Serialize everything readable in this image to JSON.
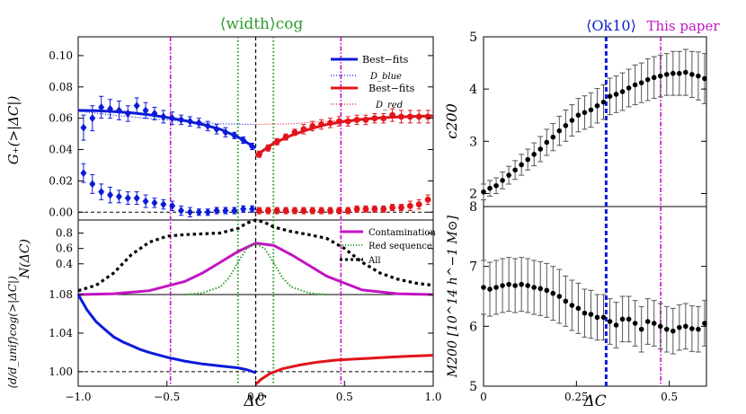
{
  "chart_data": [
    {
      "type": "scatter",
      "panel": "left-top",
      "xlabel": "ΔC",
      "ylabel": "G₊(>|ΔC|)",
      "xlim": [
        -1.0,
        1.0
      ],
      "ylim": [
        -0.005,
        0.112
      ],
      "yticks": [
        "0.00",
        "0.02",
        "0.04",
        "0.06",
        "0.08",
        "0.10"
      ],
      "legend": [
        "Best−fits",
        "D_blue",
        "Best−fits",
        "D_red"
      ],
      "top_label": "⟨width⟩cog",
      "series": [
        {
          "name": "blue best-fit",
          "x": [
            -1.0,
            -0.9,
            -0.8,
            -0.7,
            -0.6,
            -0.5,
            -0.4,
            -0.3,
            -0.2,
            -0.1,
            0.0
          ],
          "values": [
            0.065,
            0.0648,
            0.0643,
            0.0635,
            0.0622,
            0.0605,
            0.0585,
            0.056,
            0.053,
            0.048,
            0.041
          ]
        },
        {
          "name": "D_blue",
          "x": [
            -1.0,
            -0.8,
            -0.6,
            -0.4,
            -0.2,
            0.0
          ],
          "values": [
            0.0645,
            0.062,
            0.0598,
            0.058,
            0.0565,
            0.056
          ]
        },
        {
          "name": "red best-fit",
          "x": [
            0.0,
            0.05,
            0.1,
            0.2,
            0.3,
            0.4,
            0.5,
            0.6,
            0.7,
            0.8,
            0.9,
            1.0
          ],
          "values": [
            0.036,
            0.04,
            0.044,
            0.049,
            0.053,
            0.056,
            0.058,
            0.0593,
            0.0602,
            0.0608,
            0.0612,
            0.0615
          ]
        },
        {
          "name": "D_red",
          "x": [
            0.0,
            0.2,
            0.4,
            0.6,
            0.8,
            1.0
          ],
          "values": [
            0.056,
            0.0565,
            0.058,
            0.0595,
            0.061,
            0.0622
          ]
        },
        {
          "name": "blue points upper",
          "x": [
            -0.97,
            -0.92,
            -0.87,
            -0.82,
            -0.77,
            -0.72,
            -0.67,
            -0.62,
            -0.57,
            -0.52,
            -0.47,
            -0.42,
            -0.37,
            -0.32,
            -0.27,
            -0.22,
            -0.17,
            -0.12,
            -0.07,
            -0.02
          ],
          "values": [
            0.054,
            0.06,
            0.067,
            0.066,
            0.065,
            0.063,
            0.068,
            0.065,
            0.063,
            0.061,
            0.06,
            0.059,
            0.058,
            0.057,
            0.055,
            0.053,
            0.051,
            0.049,
            0.046,
            0.042
          ],
          "err": [
            0.008,
            0.008,
            0.007,
            0.006,
            0.006,
            0.005,
            0.005,
            0.005,
            0.004,
            0.004,
            0.004,
            0.003,
            0.003,
            0.003,
            0.003,
            0.003,
            0.003,
            0.002,
            0.002,
            0.002
          ]
        },
        {
          "name": "blue points lower",
          "x": [
            -0.97,
            -0.92,
            -0.87,
            -0.82,
            -0.77,
            -0.72,
            -0.67,
            -0.62,
            -0.57,
            -0.52,
            -0.47,
            -0.42,
            -0.37,
            -0.32,
            -0.27,
            -0.22,
            -0.17,
            -0.12,
            -0.07,
            -0.02
          ],
          "values": [
            0.025,
            0.018,
            0.013,
            0.011,
            0.01,
            0.009,
            0.009,
            0.007,
            0.006,
            0.005,
            0.004,
            0.001,
            0.0,
            0.0,
            0.0,
            0.001,
            0.001,
            0.001,
            0.002,
            0.002
          ],
          "err": [
            0.006,
            0.006,
            0.005,
            0.005,
            0.004,
            0.004,
            0.004,
            0.004,
            0.003,
            0.003,
            0.003,
            0.003,
            0.003,
            0.002,
            0.002,
            0.002,
            0.002,
            0.002,
            0.002,
            0.002
          ]
        },
        {
          "name": "red points upper",
          "x": [
            0.02,
            0.07,
            0.12,
            0.17,
            0.22,
            0.27,
            0.32,
            0.37,
            0.42,
            0.47,
            0.52,
            0.57,
            0.62,
            0.67,
            0.72,
            0.77,
            0.82,
            0.87,
            0.92,
            0.97
          ],
          "values": [
            0.037,
            0.041,
            0.045,
            0.048,
            0.051,
            0.053,
            0.055,
            0.056,
            0.057,
            0.058,
            0.058,
            0.059,
            0.059,
            0.06,
            0.06,
            0.062,
            0.061,
            0.061,
            0.061,
            0.061
          ],
          "err": [
            0.002,
            0.002,
            0.002,
            0.002,
            0.002,
            0.003,
            0.003,
            0.003,
            0.003,
            0.003,
            0.003,
            0.003,
            0.003,
            0.003,
            0.003,
            0.004,
            0.004,
            0.004,
            0.004,
            0.004
          ]
        },
        {
          "name": "red points lower",
          "x": [
            0.02,
            0.07,
            0.12,
            0.17,
            0.22,
            0.27,
            0.32,
            0.37,
            0.42,
            0.47,
            0.52,
            0.57,
            0.62,
            0.67,
            0.72,
            0.77,
            0.82,
            0.87,
            0.92,
            0.97
          ],
          "values": [
            0.001,
            0.001,
            0.001,
            0.001,
            0.001,
            0.001,
            0.001,
            0.001,
            0.001,
            0.001,
            0.001,
            0.002,
            0.002,
            0.002,
            0.002,
            0.003,
            0.003,
            0.004,
            0.005,
            0.008
          ],
          "err": [
            0.002,
            0.002,
            0.002,
            0.002,
            0.002,
            0.002,
            0.002,
            0.002,
            0.002,
            0.002,
            0.002,
            0.002,
            0.002,
            0.002,
            0.002,
            0.002,
            0.002,
            0.003,
            0.003,
            0.003
          ]
        }
      ],
      "vlines": [
        {
          "x": -0.1,
          "style": "green-dotted"
        },
        {
          "x": 0.1,
          "style": "green-dotted"
        },
        {
          "x": 0.0,
          "style": "black-dashed"
        },
        {
          "x": -0.48,
          "style": "magenta-dashdot"
        },
        {
          "x": 0.48,
          "style": "magenta-dashdot"
        }
      ],
      "hline": 0.0
    },
    {
      "type": "line",
      "panel": "left-middle",
      "ylabel": "N(ΔC)",
      "xlim": [
        -1.0,
        1.0
      ],
      "ylim": [
        0.0,
        0.97
      ],
      "yticks": [
        "0.4",
        "0.6",
        "0.8"
      ],
      "legend": [
        "Contamination",
        "Red sequence",
        "All"
      ],
      "series": [
        {
          "name": "Contamination",
          "x": [
            -1.0,
            -0.8,
            -0.6,
            -0.4,
            -0.3,
            -0.2,
            -0.1,
            0.0,
            0.1,
            0.2,
            0.3,
            0.4,
            0.6,
            0.8,
            1.0
          ],
          "values": [
            0.0,
            0.01,
            0.05,
            0.17,
            0.28,
            0.42,
            0.56,
            0.67,
            0.64,
            0.52,
            0.38,
            0.24,
            0.06,
            0.01,
            0.0
          ]
        },
        {
          "name": "Red sequence",
          "x": [
            -0.4,
            -0.3,
            -0.2,
            -0.15,
            -0.1,
            -0.05,
            0.0,
            0.05,
            0.1,
            0.15,
            0.2,
            0.3,
            0.4
          ],
          "values": [
            0.0,
            0.02,
            0.1,
            0.22,
            0.42,
            0.6,
            0.66,
            0.6,
            0.42,
            0.22,
            0.1,
            0.02,
            0.0
          ]
        },
        {
          "name": "All",
          "x": [
            -1.0,
            -0.9,
            -0.8,
            -0.7,
            -0.6,
            -0.5,
            -0.4,
            -0.3,
            -0.2,
            -0.1,
            -0.05,
            0.0,
            0.05,
            0.1,
            0.2,
            0.3,
            0.4,
            0.5,
            0.6,
            0.7,
            0.8,
            0.9,
            1.0
          ],
          "values": [
            0.05,
            0.12,
            0.28,
            0.52,
            0.68,
            0.76,
            0.78,
            0.79,
            0.8,
            0.86,
            0.93,
            0.97,
            0.94,
            0.88,
            0.82,
            0.78,
            0.73,
            0.6,
            0.42,
            0.28,
            0.2,
            0.15,
            0.12
          ]
        }
      ]
    },
    {
      "type": "line",
      "panel": "left-bottom",
      "xlabel": "ΔC",
      "ylabel": "⟨d/d_unif⟩cog(>|ΔC|)",
      "xlim": [
        -1.0,
        1.0
      ],
      "ylim": [
        0.985,
        1.08
      ],
      "yticks": [
        "1.00",
        "1.04",
        "1.08"
      ],
      "xticks": [
        "−1.0",
        "−0.5",
        "0.0",
        "0.5",
        "1.0"
      ],
      "series": [
        {
          "name": "blue",
          "x": [
            -1.0,
            -0.95,
            -0.9,
            -0.85,
            -0.8,
            -0.75,
            -0.7,
            -0.65,
            -0.6,
            -0.5,
            -0.4,
            -0.3,
            -0.2,
            -0.1,
            -0.05,
            0.0
          ],
          "values": [
            1.08,
            1.064,
            1.052,
            1.044,
            1.036,
            1.031,
            1.027,
            1.023,
            1.02,
            1.015,
            1.011,
            1.008,
            1.006,
            1.004,
            1.002,
            0.999
          ]
        },
        {
          "name": "red",
          "x": [
            0.0,
            0.03,
            0.08,
            0.15,
            0.25,
            0.35,
            0.45,
            0.55,
            0.65,
            0.75,
            0.85,
            1.0
          ],
          "values": [
            0.987,
            0.992,
            0.998,
            1.003,
            1.007,
            1.01,
            1.012,
            1.013,
            1.014,
            1.015,
            1.016,
            1.017
          ]
        }
      ],
      "hline": 1.0
    },
    {
      "type": "scatter",
      "panel": "right-top",
      "ylabel": "c200",
      "xlim": [
        0.0,
        0.6
      ],
      "ylim": [
        1.75,
        5.0
      ],
      "yticks": [
        "2",
        "3",
        "4",
        "5"
      ],
      "top_labels": [
        "⟨Ok10⟩",
        "This paper"
      ],
      "series": [
        {
          "name": "c200",
          "x": [
            0.0,
            0.017,
            0.034,
            0.051,
            0.068,
            0.085,
            0.102,
            0.119,
            0.136,
            0.153,
            0.17,
            0.187,
            0.204,
            0.221,
            0.238,
            0.255,
            0.272,
            0.289,
            0.306,
            0.323,
            0.34,
            0.357,
            0.374,
            0.391,
            0.408,
            0.425,
            0.442,
            0.459,
            0.476,
            0.493,
            0.51,
            0.527,
            0.544,
            0.561,
            0.578,
            0.595
          ],
          "values": [
            2.03,
            2.1,
            2.15,
            2.25,
            2.35,
            2.45,
            2.55,
            2.65,
            2.75,
            2.85,
            2.98,
            3.08,
            3.2,
            3.3,
            3.4,
            3.5,
            3.55,
            3.6,
            3.68,
            3.75,
            3.86,
            3.9,
            3.95,
            4.02,
            4.08,
            4.12,
            4.18,
            4.22,
            4.25,
            4.28,
            4.3,
            4.3,
            4.32,
            4.28,
            4.25,
            4.2
          ],
          "err": [
            0.15,
            0.15,
            0.15,
            0.16,
            0.17,
            0.18,
            0.2,
            0.2,
            0.22,
            0.24,
            0.25,
            0.26,
            0.28,
            0.3,
            0.3,
            0.32,
            0.32,
            0.33,
            0.33,
            0.33,
            0.35,
            0.35,
            0.36,
            0.36,
            0.38,
            0.38,
            0.4,
            0.4,
            0.4,
            0.4,
            0.42,
            0.42,
            0.44,
            0.44,
            0.46,
            0.48
          ]
        }
      ],
      "vlines": [
        {
          "x": 0.33,
          "style": "blue-dashed"
        },
        {
          "x": 0.477,
          "style": "magenta-dashdot"
        }
      ]
    },
    {
      "type": "scatter",
      "panel": "right-bottom",
      "xlabel": "ΔC",
      "ylabel": "M200 [10^14 h^−1 M⊙]",
      "xlim": [
        0.0,
        0.6
      ],
      "ylim": [
        5.0,
        8.0
      ],
      "yticks": [
        "5",
        "6",
        "7",
        "8"
      ],
      "xticks": [
        "0",
        "0.25",
        "0.5"
      ],
      "series": [
        {
          "name": "M200",
          "x": [
            0.0,
            0.017,
            0.034,
            0.051,
            0.068,
            0.085,
            0.102,
            0.119,
            0.136,
            0.153,
            0.17,
            0.187,
            0.204,
            0.221,
            0.238,
            0.255,
            0.272,
            0.289,
            0.306,
            0.323,
            0.34,
            0.357,
            0.374,
            0.391,
            0.408,
            0.425,
            0.442,
            0.459,
            0.476,
            0.493,
            0.51,
            0.527,
            0.544,
            0.561,
            0.578,
            0.595
          ],
          "values": [
            6.65,
            6.62,
            6.65,
            6.68,
            6.7,
            6.68,
            6.7,
            6.68,
            6.65,
            6.63,
            6.6,
            6.55,
            6.5,
            6.42,
            6.35,
            6.3,
            6.22,
            6.2,
            6.15,
            6.15,
            6.08,
            6.02,
            6.12,
            6.12,
            6.05,
            5.95,
            6.08,
            6.05,
            6.0,
            5.95,
            5.92,
            5.98,
            6.0,
            5.96,
            5.95,
            6.05
          ],
          "err": [
            0.45,
            0.45,
            0.45,
            0.45,
            0.45,
            0.45,
            0.45,
            0.45,
            0.45,
            0.45,
            0.45,
            0.45,
            0.45,
            0.42,
            0.42,
            0.42,
            0.4,
            0.4,
            0.38,
            0.38,
            0.38,
            0.38,
            0.38,
            0.38,
            0.38,
            0.38,
            0.38,
            0.38,
            0.38,
            0.38,
            0.38,
            0.38,
            0.38,
            0.38,
            0.38,
            0.38
          ]
        }
      ],
      "vlines": [
        {
          "x": 0.33,
          "style": "blue-dashed"
        },
        {
          "x": 0.477,
          "style": "magenta-dashdot"
        }
      ]
    }
  ],
  "colors": {
    "blue": "#0b1bd8",
    "red": "#e0141a",
    "magenta": "#c214c2",
    "green": "#2e9c2e",
    "black": "#000000"
  }
}
